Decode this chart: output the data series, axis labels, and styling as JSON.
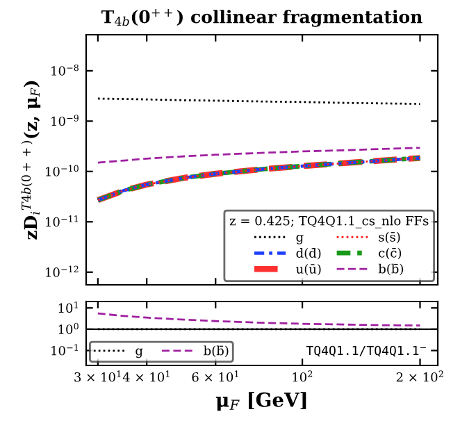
{
  "chart_data": [
    {
      "type": "line",
      "title": "T$_{4b}$(0$^{++}$) collinear fragmentation",
      "ylabel": "zD$_{i}$$^{T4b(0++)}$(z, μ$_{F}$)",
      "log": "xy",
      "xlim": [
        28,
        222
      ],
      "ylim": [
        5.6e-13,
        5.2e-08
      ],
      "yticks": [
        {
          "value": 1e-12,
          "label": "10$^{−12}$"
        },
        {
          "value": 1e-11,
          "label": "10$^{−11}$"
        },
        {
          "value": 1e-10,
          "label": "10$^{−10}$"
        },
        {
          "value": 1e-09,
          "label": "10$^{−9}$"
        },
        {
          "value": 1e-08,
          "label": "10$^{−8}$"
        }
      ],
      "xticks": [
        {
          "value": 30,
          "label": null
        },
        {
          "value": 40,
          "label": null
        },
        {
          "value": 60,
          "label": null
        },
        {
          "value": 100,
          "label": null
        },
        {
          "value": 200,
          "label": null
        }
      ],
      "tick_labels": "y",
      "legend": "bottom right",
      "legend_title": "z = 0.425; TQ4Q1.1_cs_nlo FFs",
      "x": [
        30,
        35,
        40,
        50,
        60,
        80,
        100,
        130,
        160,
        200
      ],
      "series": [
        {
          "name": "g",
          "color": "#000000",
          "line_style": "dotted",
          "values": [
            2.8e-09,
            2.75e-09,
            2.7e-09,
            2.6e-09,
            2.55e-09,
            2.45e-09,
            2.4e-09,
            2.3e-09,
            2.25e-09,
            2.2e-09
          ]
        },
        {
          "name": "s(s̄)",
          "color": "#ff2020",
          "line_style": "dotted",
          "values": [
            2.7e-11,
            4.2e-11,
            5.5e-11,
            7.5e-11,
            9e-11,
            1.12e-10,
            1.28e-10,
            1.48e-10,
            1.65e-10,
            1.85e-10
          ]
        },
        {
          "name": "d(d̄)",
          "color": "#1f3fff",
          "line_style": "dashdot",
          "values": [
            2.7e-11,
            4.2e-11,
            5.5e-11,
            7.5e-11,
            9e-11,
            1.12e-10,
            1.28e-10,
            1.48e-10,
            1.65e-10,
            1.85e-10
          ]
        },
        {
          "name": "c(c̄)",
          "color": "#1a9a1a",
          "line_style": "dashdot",
          "values": [
            2.7e-11,
            4.2e-11,
            5.5e-11,
            7.5e-11,
            9e-11,
            1.12e-10,
            1.28e-10,
            1.48e-10,
            1.65e-10,
            1.85e-10
          ]
        },
        {
          "name": "u(ū)",
          "color": "#ff3030",
          "line_style": "dashed",
          "values": [
            2.7e-11,
            4.2e-11,
            5.5e-11,
            7.5e-11,
            9e-11,
            1.12e-10,
            1.28e-10,
            1.48e-10,
            1.65e-10,
            1.85e-10
          ]
        },
        {
          "name": "b(b̄)",
          "color": "#a020a0",
          "line_style": "dashed",
          "values": [
            1.5e-10,
            1.65e-10,
            1.8e-10,
            2e-10,
            2.15e-10,
            2.35e-10,
            2.5e-10,
            2.65e-10,
            2.8e-10,
            2.95e-10
          ]
        }
      ]
    },
    {
      "type": "line",
      "xlabel": "μ$_{F}$ [GeV]",
      "log": "xy",
      "xlim": [
        28,
        222
      ],
      "ylim": [
        0.02,
        20
      ],
      "yticks": [
        {
          "value": 0.1,
          "label": "10$^{−1}$"
        },
        {
          "value": 1,
          "label": "10$^{0}$"
        },
        {
          "value": 10,
          "label": "10$^{1}$"
        }
      ],
      "xticks": [
        {
          "value": 30,
          "label": "3 × 10$^{1}$"
        },
        {
          "value": 40,
          "label": "4 × 10$^{1}$"
        },
        {
          "value": 60,
          "label": "6 × 10$^{1}$"
        },
        {
          "value": 100,
          "label": "10$^{2}$"
        },
        {
          "value": 200,
          "label": "2 × 10$^{2}$"
        }
      ],
      "legend": "bottom left",
      "annotations": [
        "TQ4Q1.1/TQ4Q1.1$^{−}$"
      ],
      "ref_lines": [
        {
          "axis": "y",
          "value": 1,
          "color": "#000000"
        }
      ],
      "x": [
        30,
        35,
        40,
        50,
        60,
        80,
        100,
        130,
        160,
        200
      ],
      "series": [
        {
          "name": "g",
          "color": "#000000",
          "line_style": "dotted",
          "values": [
            1.0,
            1.0,
            1.0,
            1.0,
            1.0,
            1.0,
            1.0,
            1.0,
            1.0,
            1.0
          ]
        },
        {
          "name": "b(b̄)",
          "color": "#a020a0",
          "line_style": "dashed",
          "values": [
            5.5,
            4.2,
            3.5,
            2.8,
            2.4,
            2.0,
            1.8,
            1.65,
            1.55,
            1.5
          ]
        }
      ]
    }
  ]
}
